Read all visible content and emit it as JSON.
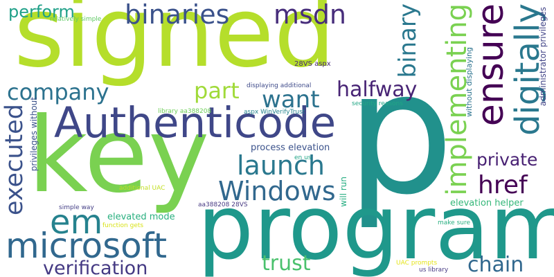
{
  "words": [
    {
      "text": "signed",
      "color": "#b5de2b",
      "vertical": false
    },
    {
      "text": "key",
      "color": "#7ad151",
      "vertical": false
    },
    {
      "text": "p",
      "color": "#21918c",
      "vertical": false
    },
    {
      "text": "program",
      "color": "#1f988b",
      "vertical": false
    },
    {
      "text": "Authenticode",
      "color": "#3f4788",
      "vertical": false
    },
    {
      "text": "microsoft",
      "color": "#31688e",
      "vertical": false
    },
    {
      "text": "ensure",
      "color": "#440154",
      "vertical": true
    },
    {
      "text": "digitally",
      "color": "#2a788e",
      "vertical": true
    },
    {
      "text": "implementing",
      "color": "#7ad151",
      "vertical": true
    },
    {
      "text": "binaries",
      "color": "#3b528b",
      "vertical": false
    },
    {
      "text": "msdn",
      "color": "#472d7b",
      "vertical": false
    },
    {
      "text": "company",
      "color": "#2c728e",
      "vertical": false
    },
    {
      "text": "Windows",
      "color": "#31688e",
      "vertical": false
    },
    {
      "text": "executed",
      "color": "#3b528b",
      "vertical": true
    },
    {
      "text": "em",
      "color": "#26828e",
      "vertical": false
    },
    {
      "text": "launch",
      "color": "#2a788e",
      "vertical": false
    },
    {
      "text": "want",
      "color": "#2c728e",
      "vertical": false
    },
    {
      "text": "halfway",
      "color": "#482475",
      "vertical": false
    },
    {
      "text": "part",
      "color": "#a0da39",
      "vertical": false
    },
    {
      "text": "binary",
      "color": "#2a788e",
      "vertical": true
    },
    {
      "text": "href",
      "color": "#440154",
      "vertical": false
    },
    {
      "text": "private",
      "color": "#482173",
      "vertical": false
    },
    {
      "text": "chain",
      "color": "#31688e",
      "vertical": false
    },
    {
      "text": "verification",
      "color": "#443983",
      "vertical": false
    },
    {
      "text": "trust",
      "color": "#4ac16d",
      "vertical": false
    },
    {
      "text": "perform",
      "color": "#1fa088",
      "vertical": false
    },
    {
      "text": "administrator privileges",
      "color": "#414487",
      "vertical": true
    },
    {
      "text": "process elevation",
      "color": "#3b528b",
      "vertical": false
    },
    {
      "text": "elevated mode",
      "color": "#29af7f",
      "vertical": false
    },
    {
      "text": "elevation helper",
      "color": "#35b779",
      "vertical": false
    },
    {
      "text": "without displaying",
      "color": "#2c728e",
      "vertical": true
    },
    {
      "text": "privileges without",
      "color": "#3b528b",
      "vertical": true
    },
    {
      "text": "will run",
      "color": "#26ad81",
      "vertical": true
    },
    {
      "text": "relatively simple",
      "color": "#5ec962",
      "vertical": false
    },
    {
      "text": "28VS aspx",
      "color": "#482878",
      "vertical": false
    },
    {
      "text": "displaying additional",
      "color": "#3e4a89",
      "vertical": false
    },
    {
      "text": "library aa388208",
      "color": "#6ece58",
      "vertical": false
    },
    {
      "text": "security reasons",
      "color": "#21a685",
      "vertical": false
    },
    {
      "text": "aspx WinVerifyTrust",
      "color": "#25848e",
      "vertical": false
    },
    {
      "text": "en us",
      "color": "#20a486",
      "vertical": false
    },
    {
      "text": "additional UAC",
      "color": "#c2df23",
      "vertical": false
    },
    {
      "text": "simple way",
      "color": "#433e85",
      "vertical": false
    },
    {
      "text": "aa388208 28VS",
      "color": "#453781",
      "vertical": false
    },
    {
      "text": "function gets",
      "color": "#d8e219",
      "vertical": false
    },
    {
      "text": "make sure",
      "color": "#28ae80",
      "vertical": false
    },
    {
      "text": "UAC prompts",
      "color": "#e5e419",
      "vertical": false
    },
    {
      "text": "us library",
      "color": "#453882",
      "vertical": false
    }
  ]
}
